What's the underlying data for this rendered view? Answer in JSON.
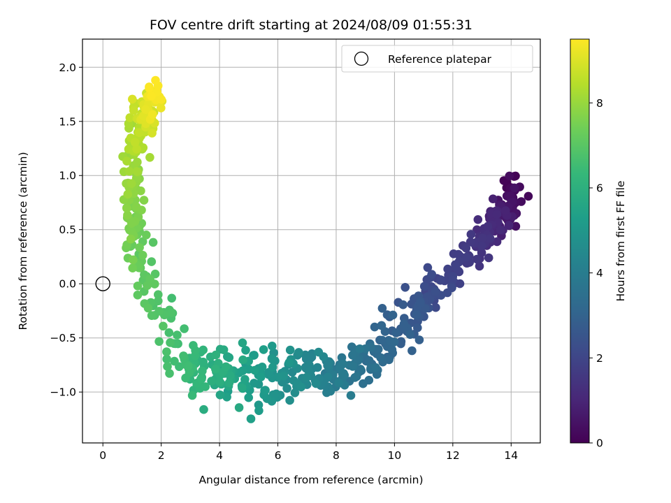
{
  "chart_data": {
    "type": "scatter",
    "title": "FOV centre drift starting at 2024/08/09 01:55:31",
    "xlabel": "Angular distance from reference (arcmin)",
    "ylabel": "Rotation from reference (arcmin)",
    "xlim": [
      -0.7,
      15.0
    ],
    "ylim": [
      -1.47,
      2.26
    ],
    "xticks": [
      0,
      2,
      4,
      6,
      8,
      10,
      12,
      14
    ],
    "yticks": [
      -1.0,
      -0.5,
      0.0,
      0.5,
      1.0,
      1.5,
      2.0
    ],
    "ytick_labels": [
      "−1.0",
      "−0.5",
      "0.0",
      "0.5",
      "1.0",
      "1.5",
      "2.0"
    ],
    "grid": true,
    "legend": {
      "placement": "top-right",
      "entries": [
        "Reference platepar"
      ]
    },
    "reference_point": {
      "x": 0.0,
      "y": 0.0,
      "marker": "open-circle"
    },
    "colorbar": {
      "label": "Hours from first FF file",
      "colormap": "viridis",
      "range": [
        0,
        9.5
      ],
      "ticks": [
        0,
        2,
        4,
        6,
        8
      ]
    },
    "colormap_stops": [
      "#440154",
      "#482878",
      "#3e4989",
      "#31688e",
      "#26828e",
      "#1f9e89",
      "#35b779",
      "#6ece58",
      "#b5de2b",
      "#fde725"
    ],
    "drift_track": [
      {
        "hours": 0.0,
        "x": 14.05,
        "y": 0.88,
        "x_spread": 0.25,
        "y_spread": 0.14
      },
      {
        "hours": 0.5,
        "x": 13.9,
        "y": 0.7,
        "x_spread": 0.3,
        "y_spread": 0.14
      },
      {
        "hours": 1.0,
        "x": 13.4,
        "y": 0.6,
        "x_spread": 0.35,
        "y_spread": 0.14
      },
      {
        "hours": 1.5,
        "x": 12.9,
        "y": 0.35,
        "x_spread": 0.35,
        "y_spread": 0.14
      },
      {
        "hours": 2.0,
        "x": 11.6,
        "y": 0.0,
        "x_spread": 0.45,
        "y_spread": 0.14
      },
      {
        "hours": 2.5,
        "x": 10.8,
        "y": -0.2,
        "x_spread": 0.5,
        "y_spread": 0.15
      },
      {
        "hours": 3.0,
        "x": 9.9,
        "y": -0.5,
        "x_spread": 0.5,
        "y_spread": 0.15
      },
      {
        "hours": 3.5,
        "x": 8.9,
        "y": -0.72,
        "x_spread": 0.5,
        "y_spread": 0.14
      },
      {
        "hours": 4.0,
        "x": 7.8,
        "y": -0.85,
        "x_spread": 0.5,
        "y_spread": 0.16
      },
      {
        "hours": 4.5,
        "x": 6.8,
        "y": -0.82,
        "x_spread": 0.5,
        "y_spread": 0.15
      },
      {
        "hours": 5.0,
        "x": 5.7,
        "y": -0.88,
        "x_spread": 0.5,
        "y_spread": 0.18
      },
      {
        "hours": 5.5,
        "x": 4.6,
        "y": -0.85,
        "x_spread": 0.5,
        "y_spread": 0.17
      },
      {
        "hours": 6.0,
        "x": 3.7,
        "y": -0.82,
        "x_spread": 0.45,
        "y_spread": 0.17
      },
      {
        "hours": 6.5,
        "x": 2.9,
        "y": -0.78,
        "x_spread": 0.35,
        "y_spread": 0.18
      },
      {
        "hours": 7.0,
        "x": 1.5,
        "y": -0.05,
        "x_spread": 0.3,
        "y_spread": 0.3
      },
      {
        "hours": 7.5,
        "x": 1.0,
        "y": 0.5,
        "x_spread": 0.3,
        "y_spread": 0.22
      },
      {
        "hours": 8.0,
        "x": 1.0,
        "y": 1.0,
        "x_spread": 0.3,
        "y_spread": 0.2
      },
      {
        "hours": 8.5,
        "x": 1.2,
        "y": 1.45,
        "x_spread": 0.3,
        "y_spread": 0.17
      },
      {
        "hours": 9.0,
        "x": 1.6,
        "y": 1.62,
        "x_spread": 0.3,
        "y_spread": 0.15
      },
      {
        "hours": 9.5,
        "x": 1.8,
        "y": 1.75,
        "x_spread": 0.25,
        "y_spread": 0.14
      }
    ],
    "n_points": 720
  }
}
